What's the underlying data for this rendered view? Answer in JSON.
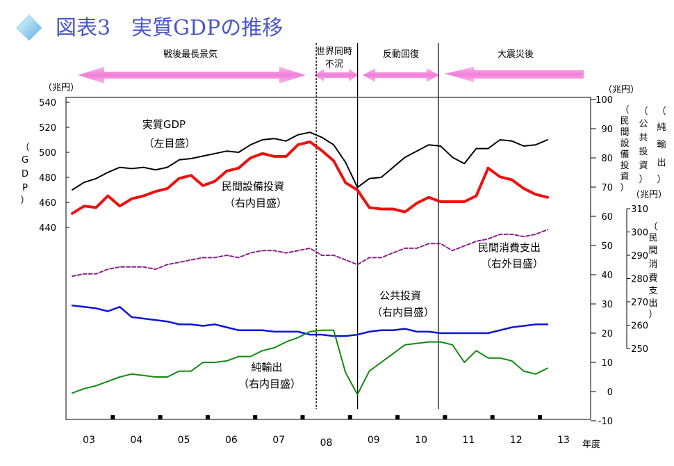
{
  "title": "図表3　実質GDPの推移",
  "colors": {
    "gdp": "#000000",
    "capex": "#ee1111",
    "consumption": "#8a1f8a",
    "public": "#0b16d6",
    "netexports": "#108a10",
    "title": "#4a56c8",
    "arrow": "#f07fd8"
  },
  "periods": [
    {
      "label": "戦後最長景気",
      "label2": ""
    },
    {
      "label": "世界同時",
      "label2": "不況"
    },
    {
      "label": "反動回復",
      "label2": ""
    },
    {
      "label": "大震災後",
      "label2": ""
    }
  ],
  "annotations": [
    {
      "name": "gdp-annotation",
      "line1": "実質GDP",
      "line2": "（左目盛）"
    },
    {
      "name": "capex-annotation",
      "line1": "民間設備投資",
      "line2": "（右内目盛）"
    },
    {
      "name": "consumption-annotation",
      "line1": "民間消費支出",
      "line2": "（右外目盛）"
    },
    {
      "name": "public-annotation",
      "line1": "公共投資",
      "line2": "（右内目盛）"
    },
    {
      "name": "netexports-annotation",
      "line1": "純輸出",
      "line2": "（右内目盛）"
    }
  ],
  "chart_data": {
    "type": "line",
    "x_unit": "年度",
    "x_ticks": [
      "03",
      "04",
      "05",
      "06",
      "07",
      "08",
      "09",
      "10",
      "11",
      "12",
      "13"
    ],
    "axes": {
      "left": {
        "unit": "（兆円）",
        "label": [
          "（",
          "G",
          "D",
          "P",
          "）"
        ],
        "ticks": [
          440,
          460,
          480,
          500,
          520,
          540
        ],
        "ylim": [
          440,
          540
        ]
      },
      "right_inner": {
        "unit": "（兆円）",
        "ticks": [
          -10,
          0,
          10,
          20,
          30,
          40,
          50,
          60,
          70,
          80,
          90,
          100
        ],
        "ylim": [
          -10,
          100
        ]
      },
      "right_outer_top_labels": [
        [
          "（",
          "純",
          "輸",
          "出",
          "）"
        ],
        [
          "（",
          "公",
          "共",
          "投",
          "資",
          "）"
        ],
        [
          "（",
          "民",
          "間",
          "設",
          "備",
          "投",
          "資",
          "）"
        ]
      ],
      "right_outer": {
        "unit": "（兆円）",
        "label": [
          "（",
          "民",
          "間",
          "消",
          "費",
          "支",
          "出",
          "）"
        ],
        "ticks": [
          250,
          260,
          270,
          280,
          290,
          300,
          310
        ],
        "ylim": [
          250,
          310
        ]
      }
    },
    "series": [
      {
        "key": "gdp",
        "scale": "left",
        "values": [
          470,
          476,
          479,
          484,
          488,
          487,
          488,
          486,
          488,
          494,
          495,
          497,
          499,
          501,
          500,
          506,
          510,
          511,
          509,
          514,
          516,
          512,
          506,
          492,
          472,
          479,
          480,
          488,
          496,
          501,
          506,
          505,
          496,
          491,
          503,
          503,
          510,
          509,
          505,
          506,
          510
        ]
      },
      {
        "key": "capex",
        "scale": "right_inner",
        "values": [
          61,
          63.5,
          63,
          67,
          63.5,
          66,
          67,
          68.5,
          69.5,
          73,
          74,
          70.5,
          72,
          75.5,
          76.5,
          80,
          81.5,
          80.5,
          80.5,
          84.5,
          85.5,
          82.5,
          79,
          71.5,
          69,
          63,
          62.5,
          62.5,
          61.5,
          64.5,
          66.5,
          65,
          65,
          65,
          67,
          76.5,
          73.5,
          72.5,
          69.5,
          67.5,
          66.5
        ]
      },
      {
        "key": "consumption",
        "scale": "right_outer",
        "values": [
          281,
          282,
          282,
          284,
          285,
          285,
          285,
          284,
          286,
          287,
          288,
          289,
          289,
          290,
          289,
          291,
          292,
          292,
          291,
          292,
          293,
          290,
          290,
          288,
          286,
          289,
          289,
          291,
          293,
          293,
          295,
          295,
          292,
          294,
          296,
          297,
          299,
          299,
          298,
          299,
          301
        ]
      },
      {
        "key": "public",
        "scale": "right_inner",
        "values": [
          29.5,
          29,
          28.5,
          27.5,
          29,
          25.5,
          25,
          24.5,
          24,
          23,
          23,
          22.5,
          23,
          22,
          21,
          21,
          21,
          20.5,
          20.5,
          20.5,
          19.5,
          19.5,
          19,
          19,
          19.5,
          20.5,
          21,
          21,
          21.5,
          20.5,
          20.5,
          20,
          20,
          20,
          20,
          20,
          21,
          22,
          22.5,
          23,
          23
        ]
      },
      {
        "key": "netexports",
        "scale": "right_inner",
        "values": [
          -0.5,
          1,
          2,
          3.5,
          5,
          6,
          5.5,
          5,
          5,
          7,
          7,
          10,
          10,
          10.5,
          12,
          12,
          14,
          15,
          17,
          18.5,
          20.5,
          21,
          21,
          6.5,
          -1,
          7,
          10,
          13,
          16,
          16.5,
          17,
          17,
          16,
          10,
          14,
          11.5,
          11.5,
          10.5,
          7,
          6,
          8
        ]
      }
    ],
    "regime_lines": [
      2007.79,
      2008.66,
      2010.36
    ],
    "grid": false
  }
}
